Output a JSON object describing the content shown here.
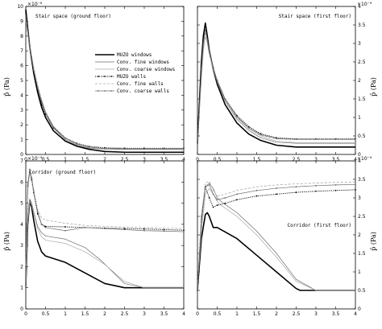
{
  "colors": {
    "muzo": "#000000",
    "conv_fine": "#6b6b6b",
    "conv_coarse": "#a8a8a8",
    "background": "#ffffff"
  },
  "axis_labels": {
    "left_y": "p̂ (Pa)",
    "right_y": "p̄ (Pa)"
  },
  "legend": {
    "placement": "top-left panel, right of center",
    "entries": [
      {
        "name": "MUZO windows",
        "style": "thick-solid",
        "color": "#000000"
      },
      {
        "name": "Conv. fine windows",
        "style": "thin-solid",
        "color": "#6b6b6b"
      },
      {
        "name": "Conv. coarse windows",
        "style": "thin-solid",
        "color": "#a8a8a8"
      },
      {
        "name": "MUZO walls",
        "style": "dotted-markers",
        "color": "#000000"
      },
      {
        "name": "Conv. fine walls",
        "style": "dashed",
        "color": "#a8a8a8"
      },
      {
        "name": "Conv. coarse walls",
        "style": "dot-markers",
        "color": "#6b6b6b"
      }
    ]
  },
  "chart_data": [
    {
      "type": "line",
      "title": "Stair space (ground floor)",
      "scale_label": "×10⁻⁸",
      "ylabel": "p̂ (Pa)",
      "xlim": [
        0,
        4
      ],
      "ylim": [
        0,
        10
      ],
      "x_ticks": [
        0,
        0.5,
        1,
        1.5,
        2,
        2.5,
        3,
        3.5,
        4
      ],
      "x_tick_labels": [
        "0",
        "0.5",
        "1",
        "1.5",
        "2",
        "2.5",
        "3",
        "3.5",
        "4"
      ],
      "y_ticks": [
        0,
        1,
        2,
        3,
        4,
        5,
        6,
        7,
        8,
        9,
        10
      ],
      "y_tick_labels": [
        "0",
        "1",
        "2",
        "3",
        "4",
        "5",
        "6",
        "7",
        "8",
        "9",
        "10"
      ],
      "grid": false,
      "series": [
        {
          "name": "MUZO windows",
          "x": [
            0,
            0.05,
            0.1,
            0.2,
            0.3,
            0.4,
            0.5,
            0.7,
            1.0,
            1.3,
            1.6,
            2.0,
            2.5,
            3.0,
            3.5,
            4.0
          ],
          "y": [
            9.8,
            8.5,
            7.3,
            5.5,
            4.2,
            3.2,
            2.5,
            1.6,
            0.9,
            0.55,
            0.35,
            0.2,
            0.15,
            0.15,
            0.15,
            0.15
          ]
        },
        {
          "name": "Conv. fine windows",
          "x": [
            0,
            0.05,
            0.1,
            0.2,
            0.3,
            0.4,
            0.5,
            0.7,
            1.0,
            1.3,
            1.6,
            2.0,
            2.5,
            3.0,
            3.5,
            4.0
          ],
          "y": [
            9.4,
            8.4,
            7.4,
            5.8,
            4.5,
            3.5,
            2.8,
            1.8,
            1.0,
            0.6,
            0.42,
            0.36,
            0.34,
            0.34,
            0.34,
            0.34
          ]
        },
        {
          "name": "Conv. coarse windows",
          "x": [
            0,
            0.05,
            0.1,
            0.2,
            0.3,
            0.4,
            0.5,
            0.7,
            1.0,
            1.3,
            1.6,
            2.0,
            2.5,
            3.0,
            3.5,
            4.0
          ],
          "y": [
            9.0,
            8.2,
            7.3,
            5.8,
            4.6,
            3.7,
            2.9,
            1.9,
            1.1,
            0.65,
            0.45,
            0.38,
            0.36,
            0.36,
            0.36,
            0.36
          ]
        },
        {
          "name": "MUZO walls",
          "x": [
            0,
            0.05,
            0.1,
            0.2,
            0.3,
            0.4,
            0.5,
            0.7,
            1.0,
            1.3,
            1.6,
            2.0,
            2.5,
            3.0,
            3.5,
            4.0
          ],
          "y": [
            9.6,
            8.4,
            7.3,
            5.6,
            4.3,
            3.4,
            2.7,
            1.8,
            1.1,
            0.75,
            0.55,
            0.45,
            0.42,
            0.42,
            0.42,
            0.42
          ]
        },
        {
          "name": "Conv. fine walls",
          "x": [
            0,
            0.05,
            0.1,
            0.2,
            0.3,
            0.4,
            0.5,
            0.7,
            1.0,
            1.3,
            1.6,
            2.0,
            2.5,
            3.0,
            3.5,
            4.0
          ],
          "y": [
            9.2,
            8.3,
            7.4,
            5.9,
            4.7,
            3.7,
            2.9,
            1.9,
            1.15,
            0.75,
            0.52,
            0.4,
            0.38,
            0.38,
            0.38,
            0.38
          ]
        },
        {
          "name": "Conv. coarse walls",
          "x": [
            0,
            0.05,
            0.1,
            0.2,
            0.3,
            0.4,
            0.5,
            0.7,
            1.0,
            1.3,
            1.6,
            2.0,
            2.5,
            3.0,
            3.5,
            4.0
          ],
          "y": [
            9.3,
            8.3,
            7.3,
            5.7,
            4.5,
            3.6,
            2.8,
            1.85,
            1.1,
            0.7,
            0.5,
            0.4,
            0.38,
            0.38,
            0.38,
            0.38
          ]
        }
      ]
    },
    {
      "type": "line",
      "title": "Stair space (first floor)",
      "scale_label": "×10⁻⁹",
      "ylabel": "p̄ (Pa)",
      "xlim": [
        0,
        4
      ],
      "ylim": [
        0,
        4
      ],
      "x_ticks": [
        0,
        0.5,
        1,
        1.5,
        2,
        2.5,
        3,
        3.5,
        4
      ],
      "x_tick_labels": [
        "0",
        "0.5",
        "1",
        "1.5",
        "2",
        "2.5",
        "3",
        "3.5",
        "4"
      ],
      "y_ticks": [
        0,
        0.5,
        1,
        1.5,
        2,
        2.5,
        3,
        3.5,
        4
      ],
      "y_tick_labels": [
        "0",
        "0.5",
        "1",
        "1.5",
        "2",
        "2.5",
        "3",
        "3.5",
        "4"
      ],
      "grid": false,
      "series": [
        {
          "name": "MUZO windows",
          "x": [
            0,
            0.1,
            0.15,
            0.2,
            0.25,
            0.3,
            0.4,
            0.5,
            0.7,
            1.0,
            1.3,
            1.6,
            2.0,
            2.5,
            3.0,
            3.5,
            4.0
          ],
          "y": [
            0.3,
            2.5,
            3.2,
            3.55,
            3.2,
            2.8,
            2.3,
            1.9,
            1.35,
            0.85,
            0.55,
            0.38,
            0.25,
            0.2,
            0.2,
            0.2,
            0.2
          ]
        },
        {
          "name": "Conv. fine windows",
          "x": [
            0,
            0.1,
            0.15,
            0.2,
            0.25,
            0.3,
            0.4,
            0.5,
            0.7,
            1.0,
            1.3,
            1.6,
            2.0,
            2.5,
            3.0,
            3.5,
            4.0
          ],
          "y": [
            0.3,
            2.2,
            3.0,
            3.4,
            3.1,
            2.75,
            2.3,
            1.95,
            1.45,
            0.95,
            0.65,
            0.45,
            0.33,
            0.3,
            0.3,
            0.3,
            0.3
          ]
        },
        {
          "name": "Conv. coarse windows",
          "x": [
            0,
            0.1,
            0.15,
            0.2,
            0.25,
            0.3,
            0.4,
            0.5,
            0.7,
            1.0,
            1.3,
            1.6,
            2.0,
            2.5,
            3.0,
            3.5,
            4.0
          ],
          "y": [
            0.3,
            2.0,
            2.8,
            3.2,
            3.0,
            2.7,
            2.3,
            2.0,
            1.5,
            1.0,
            0.7,
            0.5,
            0.36,
            0.32,
            0.32,
            0.32,
            0.32
          ]
        },
        {
          "name": "MUZO walls",
          "x": [
            0,
            0.1,
            0.15,
            0.2,
            0.25,
            0.3,
            0.4,
            0.5,
            0.7,
            1.0,
            1.3,
            1.6,
            2.0,
            2.5,
            3.0,
            3.5,
            4.0
          ],
          "y": [
            0.3,
            2.4,
            3.1,
            3.45,
            3.15,
            2.8,
            2.35,
            2.0,
            1.5,
            1.05,
            0.75,
            0.56,
            0.45,
            0.42,
            0.42,
            0.42,
            0.42
          ]
        },
        {
          "name": "Conv. fine walls",
          "x": [
            0,
            0.1,
            0.15,
            0.2,
            0.25,
            0.3,
            0.4,
            0.5,
            0.7,
            1.0,
            1.3,
            1.6,
            2.0,
            2.5,
            3.0,
            3.5,
            4.0
          ],
          "y": [
            0.3,
            2.1,
            2.9,
            3.3,
            3.05,
            2.75,
            2.3,
            1.98,
            1.48,
            1.0,
            0.7,
            0.52,
            0.42,
            0.4,
            0.4,
            0.4,
            0.4
          ]
        },
        {
          "name": "Conv. coarse walls",
          "x": [
            0,
            0.1,
            0.15,
            0.2,
            0.25,
            0.3,
            0.4,
            0.5,
            0.7,
            1.0,
            1.3,
            1.6,
            2.0,
            2.5,
            3.0,
            3.5,
            4.0
          ],
          "y": [
            0.3,
            2.3,
            3.0,
            3.4,
            3.1,
            2.78,
            2.33,
            1.99,
            1.5,
            1.02,
            0.72,
            0.54,
            0.43,
            0.41,
            0.41,
            0.41,
            0.41
          ]
        }
      ]
    },
    {
      "type": "line",
      "title": "Corridor (ground floor)",
      "scale_label": "×10⁻⁹",
      "ylabel": "p̂ (Pa)",
      "xlim": [
        0,
        4
      ],
      "ylim": [
        0,
        7
      ],
      "x_ticks": [
        0,
        0.5,
        1,
        1.5,
        2,
        2.5,
        3,
        3.5,
        4
      ],
      "x_tick_labels": [
        "0",
        "0.5",
        "1",
        "1.5",
        "2",
        "2.5",
        "3",
        "3.5",
        "4"
      ],
      "y_ticks": [
        0,
        1,
        2,
        3,
        4,
        5,
        6,
        7
      ],
      "y_tick_labels": [
        "0",
        "1",
        "2",
        "3",
        "4",
        "5",
        "6",
        "7"
      ],
      "grid": false,
      "series": [
        {
          "name": "MUZO windows",
          "x": [
            0,
            0.05,
            0.1,
            0.15,
            0.2,
            0.3,
            0.4,
            0.5,
            1.0,
            1.5,
            2.0,
            2.5,
            3.0,
            3.5,
            4.0
          ],
          "y": [
            1.0,
            4.0,
            5.1,
            4.8,
            4.2,
            3.2,
            2.7,
            2.5,
            2.2,
            1.7,
            1.2,
            1.0,
            1.0,
            1.0,
            1.0
          ]
        },
        {
          "name": "Conv. fine windows",
          "x": [
            0,
            0.05,
            0.1,
            0.15,
            0.2,
            0.3,
            0.4,
            0.5,
            1.0,
            1.5,
            1.9,
            2.5,
            3.0,
            3.5,
            4.0
          ],
          "y": [
            1.0,
            4.2,
            5.2,
            5.0,
            4.6,
            3.9,
            3.6,
            3.45,
            3.3,
            2.9,
            2.3,
            1.2,
            1.0,
            1.0,
            1.0
          ]
        },
        {
          "name": "Conv. coarse windows",
          "x": [
            0,
            0.05,
            0.1,
            0.15,
            0.2,
            0.3,
            0.4,
            0.5,
            1.0,
            1.5,
            2.0,
            2.5,
            3.0,
            3.5,
            4.0
          ],
          "y": [
            1.0,
            4.1,
            5.1,
            4.9,
            4.5,
            3.8,
            3.4,
            3.25,
            3.1,
            2.7,
            2.1,
            1.3,
            1.0,
            1.0,
            1.0
          ]
        },
        {
          "name": "MUZO walls",
          "x": [
            0,
            0.05,
            0.1,
            0.15,
            0.2,
            0.3,
            0.4,
            0.5,
            1.0,
            1.5,
            2.0,
            2.5,
            3.0,
            3.5,
            4.0
          ],
          "y": [
            2.0,
            5.8,
            6.5,
            6.1,
            5.5,
            4.5,
            4.0,
            3.9,
            3.88,
            3.85,
            3.82,
            3.8,
            3.78,
            3.75,
            3.72
          ]
        },
        {
          "name": "Conv. fine walls",
          "x": [
            0,
            0.05,
            0.1,
            0.15,
            0.2,
            0.3,
            0.4,
            0.5,
            1.0,
            1.5,
            2.0,
            2.5,
            3.0,
            3.5,
            4.0
          ],
          "y": [
            2.0,
            5.6,
            6.4,
            6.0,
            5.5,
            4.7,
            4.3,
            4.2,
            4.05,
            3.95,
            3.9,
            3.87,
            3.85,
            3.82,
            3.8
          ]
        },
        {
          "name": "Conv. coarse walls",
          "x": [
            0,
            0.05,
            0.1,
            0.15,
            0.2,
            0.3,
            0.4,
            0.5,
            1.0,
            1.5,
            2.0,
            2.5,
            3.0,
            3.5,
            4.0
          ],
          "y": [
            2.0,
            5.9,
            6.6,
            6.2,
            5.6,
            4.6,
            4.0,
            3.85,
            3.7,
            3.85,
            3.8,
            3.75,
            3.7,
            3.68,
            3.65
          ]
        }
      ]
    },
    {
      "type": "line",
      "title": "Corridor (first floor)",
      "scale_label": "×10⁻⁹",
      "ylabel": "p̄ (Pa)",
      "xlim": [
        0,
        4
      ],
      "ylim": [
        0,
        4
      ],
      "x_ticks": [
        0,
        0.5,
        1,
        1.5,
        2,
        2.5,
        3,
        3.5,
        4
      ],
      "x_tick_labels": [
        "0",
        "0.5",
        "1",
        "1.5",
        "2",
        "2.5",
        "3",
        "3.5",
        "4"
      ],
      "y_ticks": [
        0,
        0.5,
        1,
        1.5,
        2,
        2.5,
        3,
        3.5,
        4
      ],
      "y_tick_labels": [
        "0",
        "0.5",
        "1",
        "1.5",
        "2",
        "2.5",
        "3",
        "3.5",
        "4"
      ],
      "grid": false,
      "series": [
        {
          "name": "MUZO windows",
          "x": [
            0,
            0.1,
            0.2,
            0.25,
            0.3,
            0.4,
            0.5,
            1.0,
            1.5,
            2.0,
            2.5,
            2.6,
            3.0,
            3.5,
            4.0
          ],
          "y": [
            0.5,
            1.9,
            2.55,
            2.6,
            2.5,
            2.2,
            2.2,
            1.9,
            1.45,
            1.0,
            0.55,
            0.5,
            0.5,
            0.5,
            0.5
          ]
        },
        {
          "name": "Conv. fine windows",
          "x": [
            0,
            0.1,
            0.2,
            0.3,
            0.4,
            0.5,
            0.6,
            1.0,
            1.5,
            2.0,
            2.5,
            3.0,
            3.5,
            4.0
          ],
          "y": [
            0.5,
            2.3,
            3.3,
            3.4,
            3.25,
            3.0,
            2.9,
            2.6,
            2.1,
            1.5,
            0.8,
            0.5,
            0.5,
            0.5
          ]
        },
        {
          "name": "Conv. coarse windows",
          "x": [
            0,
            0.1,
            0.2,
            0.3,
            0.4,
            0.5,
            0.6,
            1.0,
            1.5,
            2.0,
            2.5,
            3.0,
            3.5,
            4.0
          ],
          "y": [
            0.5,
            2.1,
            3.1,
            3.25,
            3.1,
            2.9,
            2.8,
            2.5,
            2.0,
            1.4,
            0.75,
            0.5,
            0.5,
            0.5
          ]
        },
        {
          "name": "MUZO walls",
          "x": [
            0,
            0.1,
            0.2,
            0.3,
            0.4,
            0.5,
            0.7,
            1.0,
            1.5,
            2.0,
            2.5,
            3.0,
            3.5,
            4.0
          ],
          "y": [
            0.5,
            2.5,
            3.3,
            3.0,
            2.75,
            2.8,
            2.85,
            2.95,
            3.05,
            3.1,
            3.15,
            3.18,
            3.2,
            3.22
          ]
        },
        {
          "name": "Conv. fine walls",
          "x": [
            0,
            0.1,
            0.2,
            0.3,
            0.4,
            0.5,
            0.7,
            1.0,
            1.5,
            2.0,
            2.5,
            3.0,
            3.5,
            4.0
          ],
          "y": [
            0.5,
            2.5,
            3.4,
            3.45,
            3.2,
            3.05,
            3.1,
            3.2,
            3.3,
            3.35,
            3.38,
            3.4,
            3.42,
            3.43
          ]
        },
        {
          "name": "Conv. coarse walls",
          "x": [
            0,
            0.1,
            0.2,
            0.3,
            0.4,
            0.5,
            0.7,
            1.0,
            1.5,
            2.0,
            2.5,
            3.0,
            3.5,
            4.0
          ],
          "y": [
            0.5,
            2.4,
            3.3,
            3.35,
            3.1,
            2.95,
            3.0,
            3.1,
            3.2,
            3.26,
            3.3,
            3.33,
            3.35,
            3.36
          ]
        }
      ]
    }
  ]
}
